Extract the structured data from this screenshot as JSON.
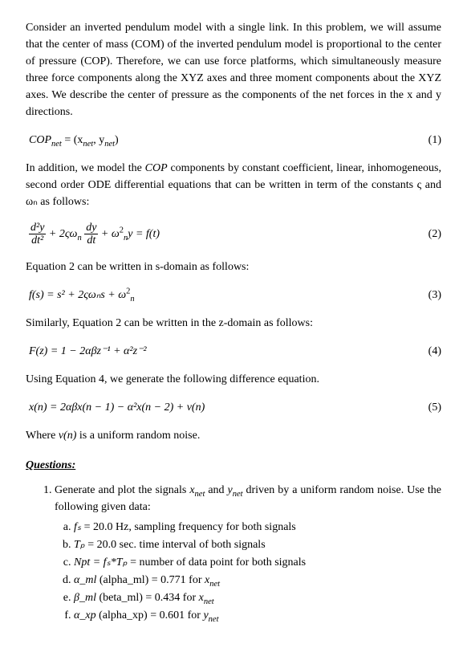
{
  "p1": "Consider an inverted pendulum model with a single link. In this problem, we will assume that the center of mass (COM) of the inverted pendulum model is proportional to the center of pressure (COP). Therefore, we can use force platforms, which simultaneously measure three force components along the XYZ axes and three moment components about the XYZ axes. We describe the center of pressure as the components of the net forces in the x and y directions.",
  "eq1_lhs": "COP",
  "eq1_sub": "net",
  "eq1_rhs_a": " = (x",
  "eq1_rhs_b": ", y",
  "eq1_rhs_c": ")",
  "eq1_num": "(1)",
  "p2a": "In addition, we model the ",
  "p2_cop": "COP",
  "p2b": " components by constant coefficient, linear, inhomogeneous, second order ODE differential equations that can be written in term of the constants ς and ωₙ as follows:",
  "eq2": {
    "f1num": "d²y",
    "f1den": "dt²",
    "plus1": " + 2ςω",
    "nsub": "n",
    "f2num": "dy",
    "f2den": "dt",
    "plus2": " + ω",
    "sq": "2",
    "yeq": "y = f(t)"
  },
  "eq2_num": "(2)",
  "p3": "Equation 2 can be written in s-domain as follows:",
  "eq3": "f(s) = s² + 2ςωₙs + ω",
  "eq3_num": "(3)",
  "p4": "Similarly, Equation 2 can be written in the z-domain as follows:",
  "eq4": "F(z) = 1 − 2αβz⁻¹ + α²z⁻²",
  "eq4_num": "(4)",
  "p5": "Using Equation 4, we generate the following difference equation.",
  "eq5": "x(n) = 2αβx(n − 1) − α²x(n − 2) + v(n)",
  "eq5_num": "(5)",
  "p6a": "Where ",
  "p6v": "v(n)",
  "p6b": " is a uniform random noise.",
  "qhdr": "Questions:",
  "q1a": "Generate and plot the signals ",
  "q1_x": "x",
  "q1_net": "net",
  "q1_and": " and ",
  "q1_y": "y",
  "q1b": " driven by a uniform random noise.  Use the following given data:",
  "sa_a": "fₛ",
  "sa_b": " = 20.0 Hz, sampling frequency for both signals",
  "sb_a": "Tₚ",
  "sb_b": " = 20.0 sec. time interval of both signals",
  "sc_a": "Npt = fₛ*Tₚ",
  "sc_b": " = number of data point for both signals",
  "sd_a": "α_ml",
  "sd_b": " (alpha_ml) = 0.771 for ",
  "se_a": "β_ml",
  "se_b": " (beta_ml) = 0.434 for ",
  "sf_a": "α_xp",
  "sf_b": " (alpha_xp) = 0.601 for "
}
